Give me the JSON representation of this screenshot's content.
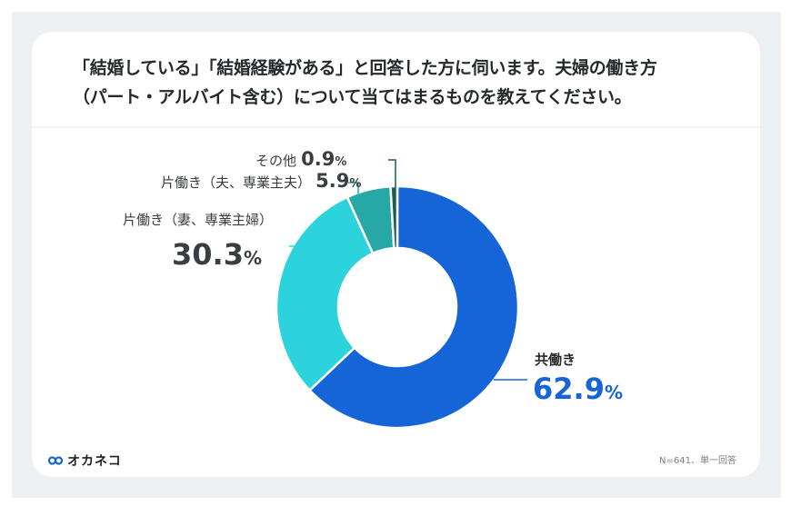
{
  "header": {
    "title_line1": "「結婚している」「結婚経験がある」と回答した方に伺います。夫婦の働き方",
    "title_line2": "（パート・アルバイト含む）について当てはまるものを教えてください。"
  },
  "labels": {
    "both": {
      "category": "共働き",
      "value": "62.9",
      "unit": "%"
    },
    "wife_home": {
      "category": "片働き（妻、専業主婦）",
      "value": "30.3",
      "unit": "%"
    },
    "husband_home": {
      "category": "片働き（夫、専業主夫）",
      "value": "5.9",
      "unit": "%"
    },
    "other": {
      "category": "その他",
      "value": "0.9",
      "unit": "%"
    }
  },
  "footer": {
    "brand": "オカネコ",
    "note": "N=641、単一回答"
  },
  "colors": {
    "both": "#1565d8",
    "wife_home": "#2dd3dc",
    "husband_home": "#26a9a6",
    "other": "#1a5b5c",
    "text": "#3a3d42",
    "accent_value": "#1565d8"
  },
  "chart_data": {
    "type": "pie",
    "subtype": "donut",
    "title": "「結婚している」「結婚経験がある」と回答した方に伺います。夫婦の働き方（パート・アルバイト含む）について当てはまるものを教えてください。",
    "categories": [
      "共働き",
      "片働き（妻、専業主婦）",
      "片働き（夫、専業主夫）",
      "その他"
    ],
    "values": [
      62.9,
      30.3,
      5.9,
      0.9
    ],
    "unit": "%",
    "colors": [
      "#1565d8",
      "#2dd3dc",
      "#26a9a6",
      "#1a5b5c"
    ],
    "start_angle": "12 o'clock, clockwise",
    "annotation": "N=641、単一回答",
    "legend": "none (direct labels)"
  }
}
